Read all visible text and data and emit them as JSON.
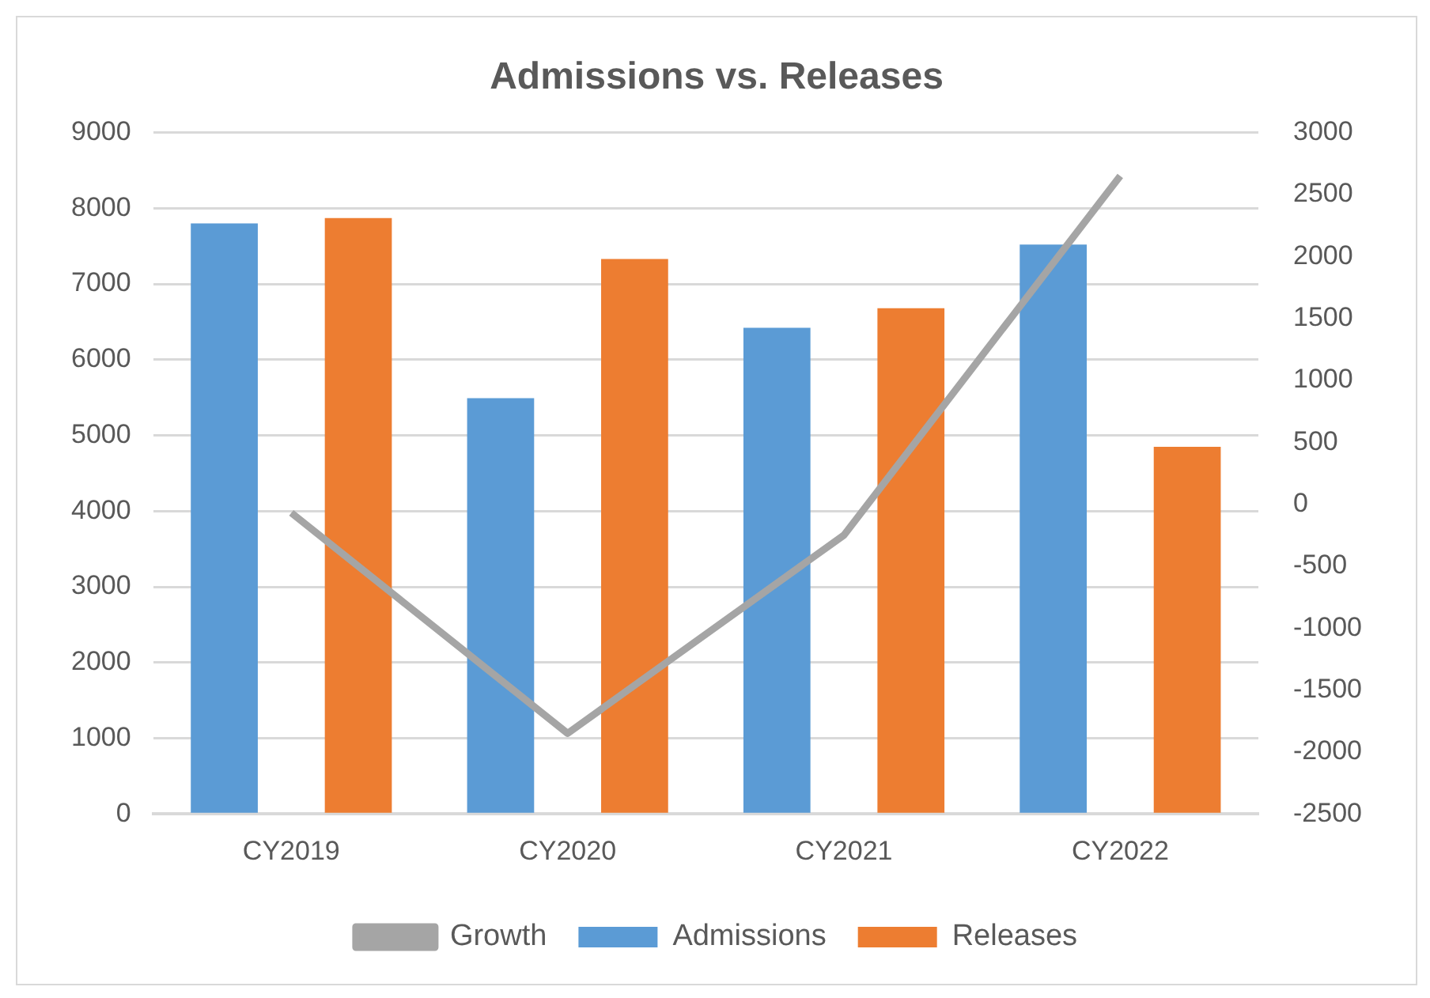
{
  "chart_data": {
    "type": "bar",
    "title": "Admissions vs. Releases",
    "categories": [
      "CY2019",
      "CY2020",
      "CY2021",
      "CY2022"
    ],
    "series": [
      {
        "name": "Admissions",
        "color": "#5b9bd5",
        "values": [
          7800,
          5490,
          6420,
          7520
        ]
      },
      {
        "name": "Releases",
        "color": "#ed7d31",
        "values": [
          7870,
          7330,
          6680,
          4850
        ]
      },
      {
        "name": "Growth",
        "type": "line",
        "axis": "y2",
        "color": "#a5a5a5",
        "values": [
          -70,
          -1850,
          -250,
          2650
        ]
      }
    ],
    "ylim": [
      0,
      9000
    ],
    "yticks": [
      0,
      1000,
      2000,
      3000,
      4000,
      5000,
      6000,
      7000,
      8000,
      9000
    ],
    "y2lim": [
      -2500,
      3000
    ],
    "y2ticks": [
      -2500,
      -2000,
      -1500,
      -1000,
      -500,
      0,
      500,
      1000,
      1500,
      2000,
      2500,
      3000
    ],
    "grid": "y",
    "legend": "bottom",
    "marker": "none"
  }
}
